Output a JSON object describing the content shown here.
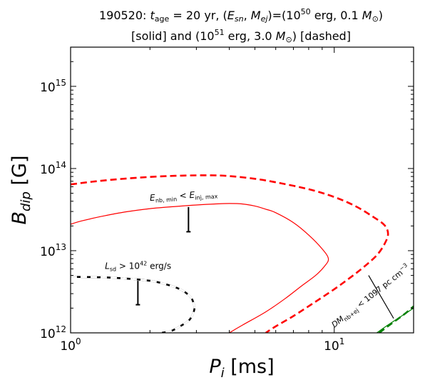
{
  "chart_data": {
    "type": "line",
    "title_line1_prefix": "190520: ",
    "title_line1_tage": "t",
    "title_line1_tage_sub": "age",
    "title_line1_tage_val": " = 20 yr, (",
    "title_line1_esn": "E",
    "title_line1_esn_sub": "sn",
    "title_line1_sep": ", ",
    "title_line1_mej": "M",
    "title_line1_mej_sub": "ej",
    "title_line1_mid": ")=(10",
    "title_line1_exp1": "50",
    "title_line1_erg": " erg, 0.1 ",
    "title_line1_msun": "M",
    "title_line1_msun_sub": "⊙",
    "title_line1_end": ")",
    "title_line2_a": "[solid] and (10",
    "title_line2_exp": "51",
    "title_line2_b": " erg, 3.0 ",
    "title_line2_msun": "M",
    "title_line2_msun_sub": "⊙",
    "title_line2_c": ") [dashed]",
    "xlabel_var": "P",
    "xlabel_sub": "i",
    "xlabel_unit": " [ms]",
    "ylabel_var": "B",
    "ylabel_sub": "dip",
    "ylabel_unit": " [G]",
    "xscale": "log",
    "yscale": "log",
    "xlim": [
      1,
      20
    ],
    "ylim": [
      1000000000000.0,
      3000000000000000.0
    ],
    "xticks": [
      {
        "value": 1,
        "base": "10",
        "exp": "0"
      },
      {
        "value": 10,
        "base": "10",
        "exp": "1"
      }
    ],
    "yticks": [
      {
        "value": 1000000000000.0,
        "base": "10",
        "exp": "12"
      },
      {
        "value": 10000000000000.0,
        "base": "10",
        "exp": "13"
      },
      {
        "value": 100000000000000.0,
        "base": "10",
        "exp": "14"
      },
      {
        "value": 1000000000000000.0,
        "base": "10",
        "exp": "15"
      }
    ],
    "grid": false,
    "series": [
      {
        "color": "#ff0000",
        "style": "solid",
        "x": [
          1.0,
          1.1,
          1.3,
          1.6,
          2.0,
          2.5,
          3.0,
          3.5,
          4.0,
          4.5,
          5.0,
          5.5,
          6.0,
          7.0,
          8.0,
          9.0,
          9.5,
          9.2,
          8.5,
          7.5,
          6.5,
          5.5,
          4.5,
          4.0
        ],
        "y": [
          21000000000000.0,
          23000000000000.0,
          26000000000000.0,
          29500000000000.0,
          32500000000000.0,
          34500000000000.0,
          36000000000000.0,
          37000000000000.0,
          37500000000000.0,
          37000000000000.0,
          35000000000000.0,
          32000000000000.0,
          29000000000000.0,
          22000000000000.0,
          15500000000000.0,
          10500000000000.0,
          8000000000000.0,
          6500000000000.0,
          5000000000000.0,
          3700000000000.0,
          2600000000000.0,
          1800000000000.0,
          1250000000000.0,
          1000000000000.0
        ]
      },
      {
        "color": "#ff0000",
        "style": "dashed",
        "x": [
          1.0,
          1.2,
          1.5,
          2.0,
          2.5,
          3.0,
          3.5,
          4.0,
          5.0,
          6.0,
          8.0,
          10.0,
          12.0,
          14.0,
          15.5,
          16.0,
          15.5,
          14.5,
          13.0,
          11.5,
          10.0,
          8.5,
          7.0,
          6.0,
          5.5
        ],
        "y": [
          64000000000000.0,
          69000000000000.0,
          74000000000000.0,
          79000000000000.0,
          81500000000000.0,
          82500000000000.0,
          82500000000000.0,
          81000000000000.0,
          75000000000000.0,
          68000000000000.0,
          56000000000000.0,
          45000000000000.0,
          35000000000000.0,
          26000000000000.0,
          20500000000000.0,
          16000000000000.0,
          12000000000000.0,
          8800000000000.0,
          6400000000000.0,
          4700000000000.0,
          3400000000000.0,
          2400000000000.0,
          1600000000000.0,
          1200000000000.0,
          1000000000000.0
        ]
      },
      {
        "color": "#000000",
        "style": "solid",
        "x": [
          1.0,
          1.3,
          1.6,
          2.0,
          2.3,
          2.6,
          2.8,
          2.9,
          2.95,
          2.9,
          2.8,
          2.6,
          2.4,
          2.2
        ],
        "y": [
          4800000000000.0,
          4750000000000.0,
          4600000000000.0,
          4300000000000.0,
          3900000000000.0,
          3400000000000.0,
          2900000000000.0,
          2500000000000.0,
          2000000000000.0,
          1650000000000.0,
          1400000000000.0,
          1200000000000.0,
          1050000000000.0,
          1000000000000.0
        ]
      },
      {
        "color": "#000000",
        "style": "dashed",
        "x": [
          1.0,
          1.3,
          1.6,
          2.0,
          2.3,
          2.6,
          2.8,
          2.9,
          2.95,
          2.9,
          2.8,
          2.6,
          2.4,
          2.2
        ],
        "y": [
          4800000000000.0,
          4750000000000.0,
          4600000000000.0,
          4300000000000.0,
          3900000000000.0,
          3400000000000.0,
          2900000000000.0,
          2500000000000.0,
          2000000000000.0,
          1650000000000.0,
          1400000000000.0,
          1200000000000.0,
          1050000000000.0,
          1000000000000.0
        ]
      },
      {
        "color": "#008000",
        "style": "solid",
        "x": [
          14.5,
          16.0,
          18.0,
          20.0
        ],
        "y": [
          1000000000000.0,
          1250000000000.0,
          1600000000000.0,
          2000000000000.0
        ]
      },
      {
        "color": "#008000",
        "style": "dashed",
        "x": [
          14.8,
          16.5,
          18.5,
          20.0
        ],
        "y": [
          1000000000000.0,
          1300000000000.0,
          1700000000000.0,
          2100000000000.0
        ]
      }
    ],
    "annotations": [
      {
        "id": "enb",
        "var": "E",
        "var_sub": "nb, min",
        "rel": " < ",
        "var2": "E",
        "var2_sub": "inj, max",
        "text_x": 2.0,
        "text_y": 40500000000000.0,
        "bar": {
          "x": 2.8,
          "y_from": 34000000000000.0,
          "y_to": 17000000000000.0,
          "color": "#000000"
        }
      },
      {
        "id": "lsd",
        "var": "L",
        "var_sub": "sd",
        "rel": " > 10",
        "exp": "42",
        "unit": " erg/s",
        "text_x": 1.35,
        "text_y": 6000000000000.0,
        "bar": {
          "x": 1.8,
          "y_from": 4300000000000.0,
          "y_to": 2200000000000.0,
          "color": "#000000"
        }
      },
      {
        "id": "dm",
        "var": "DM",
        "var_sub": "nb+ej",
        "rel": " < 1097 pc cm",
        "exp": "−3",
        "text_x": 10.0,
        "text_y": 1150000000000.0,
        "bar": {
          "x_from": 13.5,
          "y_from": 5000000000000.0,
          "x_to": 16.8,
          "y_to": 1500000000000.0,
          "color": "#000000"
        }
      }
    ]
  }
}
